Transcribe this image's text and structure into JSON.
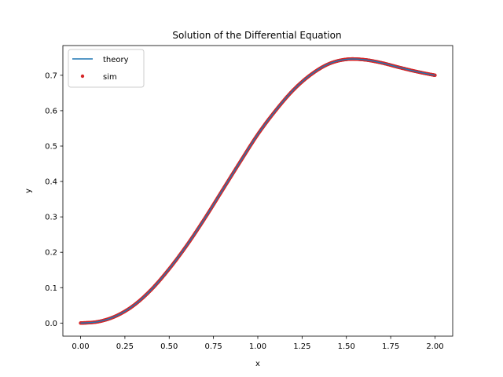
{
  "chart_data": {
    "type": "line",
    "title": "Solution of the Differential Equation",
    "xlabel": "x",
    "ylabel": "y",
    "xlim": [
      -0.1,
      2.1
    ],
    "ylim": [
      -0.037,
      0.784
    ],
    "xticks": [
      0.0,
      0.25,
      0.5,
      0.75,
      1.0,
      1.25,
      1.5,
      1.75,
      2.0
    ],
    "xtick_labels": [
      "0.00",
      "0.25",
      "0.50",
      "0.75",
      "1.00",
      "1.25",
      "1.50",
      "1.75",
      "2.00"
    ],
    "yticks": [
      0.0,
      0.1,
      0.2,
      0.3,
      0.4,
      0.5,
      0.6,
      0.7
    ],
    "ytick_labels": [
      "0.0",
      "0.1",
      "0.2",
      "0.3",
      "0.4",
      "0.5",
      "0.6",
      "0.7"
    ],
    "grid": false,
    "legend_position": "top-left",
    "series": [
      {
        "name": "theory",
        "kind": "line",
        "color": "#1f77b4",
        "x": [
          0.0,
          0.1,
          0.2,
          0.3,
          0.4,
          0.5,
          0.6,
          0.7,
          0.8,
          0.9,
          1.0,
          1.1,
          1.2,
          1.3,
          1.4,
          1.5,
          1.6,
          1.7,
          1.8,
          1.9,
          2.0
        ],
        "y": [
          0.0,
          0.004,
          0.02,
          0.05,
          0.095,
          0.153,
          0.22,
          0.295,
          0.375,
          0.455,
          0.533,
          0.6,
          0.658,
          0.702,
          0.732,
          0.745,
          0.744,
          0.735,
          0.722,
          0.71,
          0.7
        ]
      },
      {
        "name": "sim",
        "kind": "scatter",
        "color": "#d62728",
        "x": [
          0.0,
          0.1,
          0.2,
          0.3,
          0.4,
          0.5,
          0.6,
          0.7,
          0.8,
          0.9,
          1.0,
          1.1,
          1.2,
          1.3,
          1.4,
          1.5,
          1.6,
          1.7,
          1.8,
          1.9,
          2.0
        ],
        "y": [
          0.0,
          0.004,
          0.02,
          0.05,
          0.095,
          0.153,
          0.22,
          0.295,
          0.375,
          0.455,
          0.533,
          0.6,
          0.658,
          0.702,
          0.732,
          0.745,
          0.744,
          0.735,
          0.722,
          0.71,
          0.7
        ]
      }
    ]
  }
}
